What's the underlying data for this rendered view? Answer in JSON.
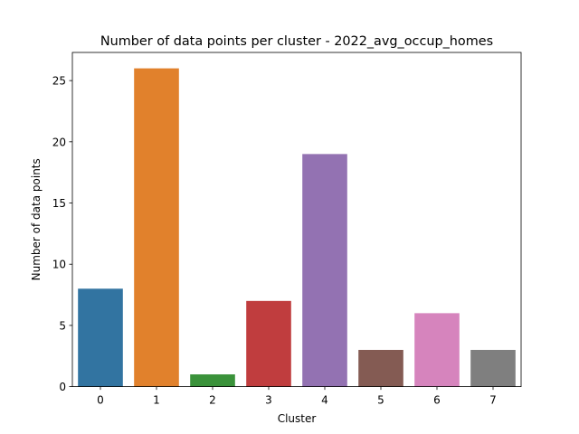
{
  "chart_data": {
    "type": "bar",
    "title": "Number of data points per cluster - 2022_avg_occup_homes",
    "xlabel": "Cluster",
    "ylabel": "Number of data points",
    "categories": [
      "0",
      "1",
      "2",
      "3",
      "4",
      "5",
      "6",
      "7"
    ],
    "values": [
      8,
      26,
      1,
      7,
      19,
      3,
      6,
      3
    ],
    "colors": [
      "#3274a1",
      "#e1812c",
      "#3a923a",
      "#c03d3e",
      "#9372b2",
      "#845b53",
      "#d684bd",
      "#7f7f7f"
    ],
    "ylim": [
      0,
      27.3
    ],
    "yticks": [
      0,
      5,
      10,
      15,
      20,
      25
    ],
    "ytick_labels": [
      "0",
      "5",
      "10",
      "15",
      "20",
      "25"
    ],
    "grid": false,
    "legend": "none"
  }
}
